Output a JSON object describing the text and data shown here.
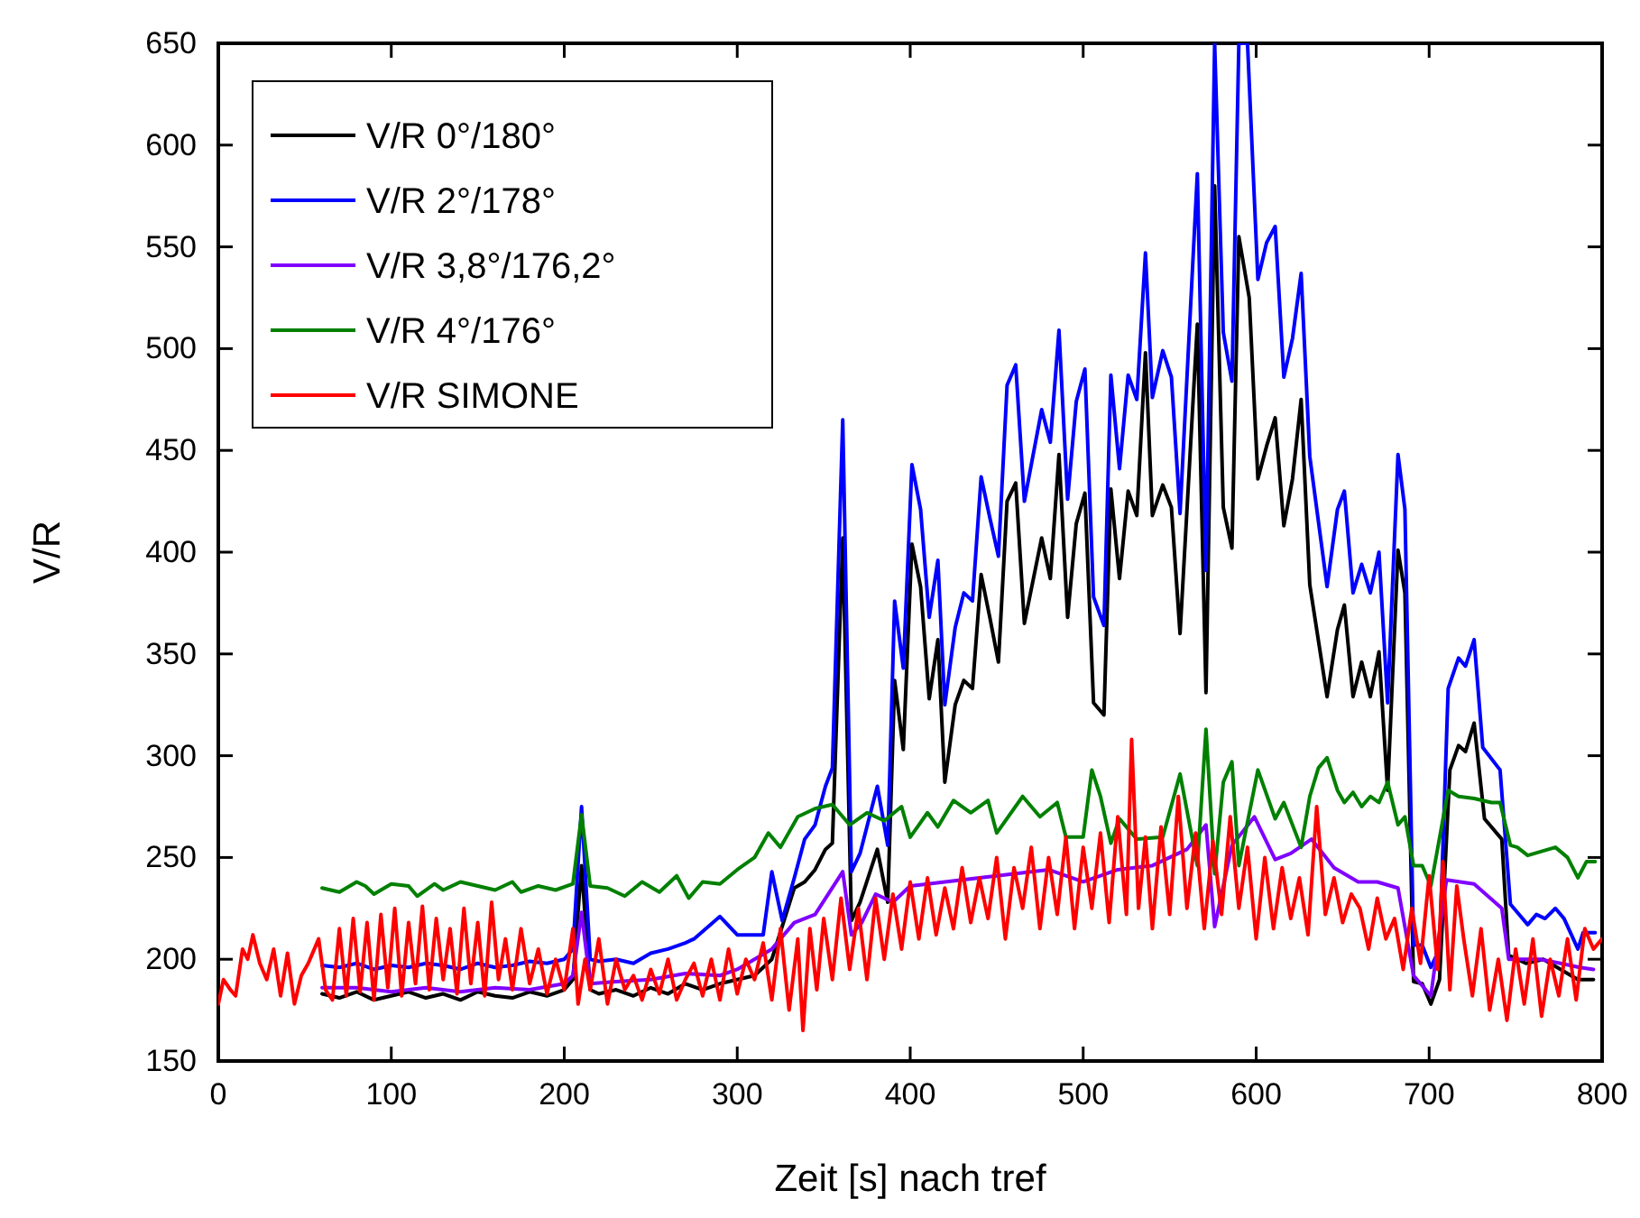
{
  "chart_data": {
    "type": "line",
    "xlabel": "Zeit [s] nach tref",
    "ylabel": "V/R",
    "xlim": [
      0,
      800
    ],
    "ylim": [
      150,
      650
    ],
    "xticks": [
      0,
      100,
      200,
      300,
      400,
      500,
      600,
      700,
      800
    ],
    "yticks": [
      150,
      200,
      250,
      300,
      350,
      400,
      450,
      500,
      550,
      600,
      650
    ],
    "grid": false,
    "legend": "top left",
    "marker": "none",
    "line_style": "solid",
    "series": [
      {
        "name": "V/R 0°/180°",
        "color": "#000000",
        "x": [
          60,
          70,
          80,
          90,
          100,
          110,
          120,
          130,
          140,
          150,
          160,
          170,
          180,
          190,
          200,
          205,
          210,
          215,
          220,
          230,
          240,
          250,
          260,
          270,
          280,
          290,
          300,
          310,
          320,
          333,
          339,
          345,
          351,
          355,
          361,
          366,
          371,
          381,
          387,
          391,
          396,
          401,
          406,
          411,
          416,
          420,
          426,
          431,
          436,
          441,
          446,
          451,
          456,
          461,
          466,
          476,
          481,
          486,
          491,
          496,
          501,
          506,
          512,
          516,
          521,
          526,
          531,
          536,
          540,
          546,
          551,
          556,
          566,
          571,
          576,
          581,
          586,
          590,
          596,
          601,
          606,
          611,
          616,
          621,
          626,
          631,
          641,
          647,
          651,
          656,
          661,
          666,
          671,
          676,
          682,
          686,
          691,
          696,
          701,
          706,
          712,
          717,
          721,
          726,
          732,
          742,
          746,
          756,
          766,
          776,
          786,
          795
        ],
        "values": [
          183,
          181,
          184,
          180,
          182,
          184,
          181,
          183,
          180,
          184,
          182,
          181,
          184,
          182,
          185,
          190,
          246,
          185,
          183,
          185,
          182,
          186,
          183,
          188,
          185,
          188,
          190,
          192,
          200,
          235,
          238,
          244,
          254,
          257,
          407,
          219,
          228,
          254,
          228,
          337,
          303,
          404,
          383,
          328,
          357,
          287,
          325,
          337,
          333,
          389,
          368,
          346,
          425,
          434,
          365,
          407,
          387,
          448,
          368,
          414,
          429,
          326,
          320,
          431,
          387,
          430,
          418,
          498,
          418,
          433,
          422,
          360,
          512,
          331,
          580,
          422,
          402,
          555,
          525,
          436,
          452,
          466,
          413,
          436,
          475,
          384,
          329,
          362,
          374,
          329,
          346,
          329,
          351,
          283,
          401,
          380,
          189,
          188,
          178,
          190,
          293,
          305,
          302,
          316,
          269,
          259,
          202,
          198,
          200,
          195,
          190,
          190
        ]
      },
      {
        "name": "V/R 2°/178°",
        "color": "#0000ff",
        "x": [
          60,
          70,
          80,
          90,
          100,
          110,
          120,
          130,
          140,
          150,
          160,
          170,
          180,
          190,
          200,
          205,
          210,
          215,
          220,
          230,
          240,
          250,
          260,
          270,
          275,
          290,
          300,
          315,
          320,
          326,
          333,
          339,
          345,
          351,
          355,
          361,
          366,
          371,
          381,
          387,
          391,
          396,
          401,
          406,
          411,
          416,
          420,
          426,
          431,
          436,
          441,
          446,
          451,
          456,
          461,
          466,
          476,
          481,
          486,
          491,
          496,
          501,
          506,
          512,
          516,
          521,
          526,
          531,
          536,
          540,
          546,
          551,
          556,
          566,
          571,
          576,
          581,
          586,
          590,
          595,
          601,
          606,
          611,
          616,
          621,
          626,
          631,
          641,
          647,
          651,
          656,
          661,
          666,
          671,
          676,
          682,
          686,
          691,
          696,
          701,
          706,
          711,
          717,
          721,
          726,
          731,
          741,
          747,
          757,
          762,
          767,
          773,
          778,
          786,
          789,
          796
        ],
        "values": [
          197,
          196,
          198,
          195,
          197,
          196,
          198,
          197,
          195,
          198,
          196,
          197,
          199,
          198,
          200,
          205,
          275,
          200,
          199,
          200,
          198,
          203,
          205,
          208,
          210,
          221,
          212,
          212,
          243,
          219,
          240,
          259,
          266,
          285,
          294,
          465,
          243,
          252,
          285,
          256,
          376,
          343,
          443,
          421,
          368,
          396,
          325,
          363,
          380,
          376,
          437,
          417,
          398,
          482,
          492,
          425,
          470,
          454,
          509,
          426,
          474,
          490,
          378,
          364,
          487,
          441,
          487,
          475,
          547,
          476,
          499,
          486,
          419,
          586,
          391,
          650,
          508,
          484,
          650,
          650,
          534,
          552,
          560,
          486,
          505,
          537,
          447,
          383,
          421,
          430,
          380,
          394,
          380,
          400,
          326,
          448,
          421,
          207,
          207,
          196,
          205,
          333,
          348,
          344,
          357,
          304,
          293,
          227,
          217,
          222,
          220,
          225,
          220,
          205,
          213,
          213
        ]
      },
      {
        "name": "V/R 3,8°/176,2°",
        "color": "#8000ff",
        "x": [
          60,
          80,
          100,
          120,
          140,
          160,
          180,
          200,
          205,
          210,
          215,
          230,
          250,
          270,
          290,
          300,
          320,
          333,
          345,
          361,
          366,
          372,
          380,
          390,
          400,
          420,
          440,
          460,
          480,
          500,
          520,
          540,
          560,
          571,
          576,
          586,
          599,
          611,
          620,
          632,
          645,
          659,
          670,
          682,
          691,
          701,
          710,
          726,
          742,
          746,
          764,
          776,
          787,
          795
        ],
        "values": [
          186,
          186,
          184,
          186,
          184,
          186,
          185,
          188,
          192,
          223,
          188,
          189,
          190,
          193,
          192,
          195,
          205,
          218,
          222,
          243,
          212,
          218,
          232,
          228,
          236,
          238,
          240,
          242,
          244,
          238,
          244,
          246,
          254,
          266,
          216,
          256,
          270,
          249,
          252,
          259,
          245,
          238,
          238,
          235,
          192,
          182,
          239,
          237,
          225,
          200,
          200,
          198,
          196,
          195
        ]
      },
      {
        "name": "V/R 4°/176°",
        "color": "#008000",
        "x": [
          60,
          70,
          80,
          85,
          90,
          100,
          110,
          115,
          125,
          130,
          140,
          150,
          160,
          170,
          175,
          185,
          195,
          205,
          210,
          215,
          225,
          235,
          245,
          255,
          265,
          272,
          280,
          290,
          300,
          310,
          318,
          325,
          335,
          345,
          355,
          365,
          375,
          385,
          395,
          400,
          410,
          416,
          425,
          435,
          445,
          450,
          465,
          475,
          485,
          490,
          500,
          505,
          510,
          516,
          521,
          531,
          546,
          556,
          566,
          571,
          576,
          581,
          586,
          590,
          601,
          611,
          616,
          626,
          631,
          636,
          641,
          647,
          651,
          656,
          661,
          666,
          671,
          676,
          682,
          686,
          691,
          696,
          701,
          711,
          717,
          726,
          736,
          741,
          747,
          751,
          757,
          765,
          773,
          780,
          786,
          791,
          796
        ],
        "values": [
          235,
          233,
          238,
          236,
          232,
          237,
          236,
          231,
          237,
          234,
          238,
          236,
          234,
          238,
          233,
          236,
          234,
          237,
          271,
          236,
          235,
          231,
          238,
          233,
          241,
          230,
          238,
          237,
          244,
          250,
          262,
          255,
          270,
          274,
          276,
          266,
          272,
          268,
          275,
          260,
          272,
          265,
          278,
          272,
          278,
          262,
          280,
          270,
          277,
          260,
          260,
          293,
          280,
          257,
          269,
          259,
          260,
          291,
          246,
          313,
          242,
          287,
          297,
          246,
          293,
          269,
          277,
          255,
          280,
          294,
          299,
          283,
          277,
          282,
          275,
          280,
          277,
          287,
          266,
          270,
          246,
          246,
          236,
          283,
          280,
          279,
          277,
          277,
          256,
          255,
          251,
          253,
          255,
          250,
          240,
          248,
          248
        ]
      },
      {
        "name": "V/R SIMONE",
        "color": "#ff0000",
        "x": [
          0,
          3,
          7,
          10,
          14,
          17,
          20,
          24,
          28,
          32,
          36,
          40,
          44,
          48,
          52,
          58,
          62,
          66,
          70,
          74,
          78,
          82,
          86,
          90,
          94,
          98,
          102,
          106,
          110,
          114,
          118,
          122,
          126,
          130,
          134,
          138,
          142,
          146,
          150,
          154,
          158,
          162,
          166,
          170,
          175,
          180,
          185,
          190,
          195,
          200,
          205,
          208,
          212,
          215,
          220,
          225,
          230,
          235,
          240,
          245,
          250,
          255,
          260,
          265,
          270,
          275,
          280,
          285,
          290,
          295,
          300,
          305,
          310,
          315,
          320,
          325,
          330,
          335,
          338,
          342,
          346,
          350,
          355,
          360,
          365,
          370,
          375,
          380,
          385,
          390,
          395,
          400,
          405,
          410,
          415,
          420,
          425,
          430,
          435,
          440,
          445,
          450,
          455,
          460,
          465,
          470,
          475,
          480,
          485,
          490,
          495,
          500,
          505,
          510,
          515,
          520,
          525,
          528,
          532,
          536,
          540,
          545,
          550,
          555,
          560,
          565,
          570,
          575,
          580,
          585,
          590,
          595,
          600,
          605,
          610,
          615,
          620,
          625,
          630,
          635,
          640,
          645,
          650,
          655,
          660,
          665,
          670,
          675,
          680,
          685,
          690,
          695,
          700,
          705,
          708,
          712,
          716,
          720,
          725,
          730,
          735,
          740,
          745,
          750,
          755,
          760,
          765,
          770,
          775,
          780,
          785,
          790,
          795,
          800
        ],
        "values": [
          178,
          190,
          185,
          182,
          205,
          200,
          212,
          198,
          190,
          205,
          182,
          203,
          178,
          192,
          198,
          210,
          185,
          180,
          215,
          182,
          220,
          184,
          218,
          180,
          222,
          186,
          225,
          182,
          218,
          188,
          226,
          185,
          220,
          190,
          215,
          183,
          225,
          188,
          218,
          182,
          228,
          190,
          210,
          185,
          215,
          188,
          205,
          183,
          200,
          185,
          215,
          178,
          200,
          185,
          210,
          178,
          200,
          185,
          192,
          180,
          195,
          183,
          200,
          180,
          190,
          198,
          182,
          200,
          180,
          205,
          183,
          200,
          190,
          208,
          180,
          215,
          175,
          210,
          165,
          215,
          185,
          220,
          190,
          230,
          195,
          225,
          190,
          230,
          200,
          232,
          205,
          238,
          210,
          240,
          212,
          235,
          215,
          245,
          218,
          240,
          220,
          250,
          210,
          245,
          225,
          255,
          215,
          250,
          222,
          260,
          215,
          255,
          225,
          262,
          218,
          270,
          222,
          308,
          225,
          260,
          215,
          265,
          222,
          280,
          225,
          262,
          215,
          258,
          222,
          270,
          225,
          255,
          210,
          250,
          215,
          245,
          220,
          240,
          212,
          275,
          222,
          240,
          218,
          232,
          225,
          205,
          230,
          210,
          220,
          195,
          225,
          198,
          241,
          195,
          248,
          185,
          236,
          210,
          182,
          215,
          175,
          200,
          170,
          205,
          178,
          210,
          172,
          200,
          182,
          210,
          180,
          215,
          205,
          210
        ]
      }
    ]
  }
}
